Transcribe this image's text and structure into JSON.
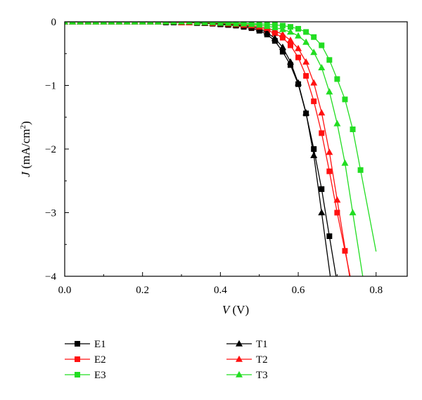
{
  "chart_data": {
    "type": "line",
    "title": "",
    "xlabel": {
      "symbol": "V",
      "unit": " (V)"
    },
    "ylabel": {
      "symbol": "J",
      "unit_pre": " (mA/cm",
      "unit_sup": "2",
      "unit_post": ")"
    },
    "xlim": [
      0,
      0.88
    ],
    "ylim": [
      -4,
      0
    ],
    "xticks": [
      {
        "value": 0.0,
        "label": "0.0"
      },
      {
        "value": 0.2,
        "label": "0.2"
      },
      {
        "value": 0.4,
        "label": "0.4"
      },
      {
        "value": 0.6,
        "label": "0.6"
      },
      {
        "value": 0.8,
        "label": "0.8"
      }
    ],
    "yticks": [
      {
        "value": 0,
        "label": "0"
      },
      {
        "value": -1,
        "label": "−1"
      },
      {
        "value": -2,
        "label": "−2"
      },
      {
        "value": -3,
        "label": "−3"
      },
      {
        "value": -4,
        "label": "−4"
      }
    ],
    "grid": false,
    "legend_position": "bottom",
    "series": [
      {
        "name": "E1",
        "color": "#000000",
        "marker": "square",
        "x": [
          0.0,
          0.02,
          0.04,
          0.06,
          0.08,
          0.1,
          0.12,
          0.14,
          0.16,
          0.18,
          0.2,
          0.22,
          0.24,
          0.26,
          0.28,
          0.3,
          0.32,
          0.34,
          0.36,
          0.38,
          0.4,
          0.42,
          0.44,
          0.46,
          0.48,
          0.5,
          0.52,
          0.54,
          0.56,
          0.58,
          0.6,
          0.62,
          0.64,
          0.66,
          0.68
        ],
        "y": [
          0.0,
          0.0,
          0.0,
          0.0,
          0.0,
          0.0,
          0.0,
          0.0,
          0.0,
          0.0,
          0.0,
          0.0,
          0.0,
          -0.01,
          -0.01,
          -0.01,
          -0.01,
          -0.02,
          -0.02,
          -0.03,
          -0.04,
          -0.05,
          -0.06,
          -0.08,
          -0.1,
          -0.14,
          -0.2,
          -0.3,
          -0.47,
          -0.68,
          -0.98,
          -1.44,
          -2.0,
          -2.63,
          -3.37
        ]
      },
      {
        "name": "E2",
        "color": "#ff1111",
        "marker": "square",
        "x": [
          0.0,
          0.02,
          0.04,
          0.06,
          0.08,
          0.1,
          0.12,
          0.14,
          0.16,
          0.18,
          0.2,
          0.22,
          0.24,
          0.26,
          0.28,
          0.3,
          0.32,
          0.34,
          0.36,
          0.38,
          0.4,
          0.42,
          0.44,
          0.46,
          0.48,
          0.5,
          0.52,
          0.54,
          0.56,
          0.58,
          0.6,
          0.62,
          0.64,
          0.66,
          0.68,
          0.7,
          0.72
        ],
        "y": [
          0.0,
          0.0,
          0.0,
          0.0,
          0.0,
          0.0,
          0.0,
          0.0,
          0.0,
          0.0,
          0.0,
          0.0,
          0.0,
          0.0,
          0.0,
          -0.01,
          -0.01,
          -0.01,
          -0.02,
          -0.02,
          -0.03,
          -0.04,
          -0.05,
          -0.06,
          -0.08,
          -0.1,
          -0.13,
          -0.18,
          -0.25,
          -0.37,
          -0.56,
          -0.85,
          -1.25,
          -1.75,
          -2.35,
          -3.0,
          -3.6
        ]
      },
      {
        "name": "E3",
        "color": "#22dd22",
        "marker": "square",
        "x": [
          0.0,
          0.02,
          0.04,
          0.06,
          0.08,
          0.1,
          0.12,
          0.14,
          0.16,
          0.18,
          0.2,
          0.22,
          0.24,
          0.26,
          0.28,
          0.3,
          0.32,
          0.34,
          0.36,
          0.38,
          0.4,
          0.42,
          0.44,
          0.46,
          0.48,
          0.5,
          0.52,
          0.54,
          0.56,
          0.58,
          0.6,
          0.62,
          0.64,
          0.66,
          0.68,
          0.7,
          0.72,
          0.74,
          0.76
        ],
        "y": [
          0.0,
          0.0,
          0.0,
          0.0,
          0.0,
          0.0,
          0.0,
          0.0,
          0.0,
          0.0,
          0.0,
          0.0,
          0.0,
          0.0,
          0.0,
          0.0,
          0.0,
          0.0,
          -0.01,
          -0.01,
          -0.01,
          -0.01,
          -0.02,
          -0.02,
          -0.03,
          -0.03,
          -0.04,
          -0.05,
          -0.06,
          -0.08,
          -0.11,
          -0.16,
          -0.24,
          -0.37,
          -0.6,
          -0.9,
          -1.22,
          -1.69,
          -2.33
        ]
      },
      {
        "name": "T1",
        "color": "#000000",
        "marker": "triangle",
        "x": [
          0.0,
          0.02,
          0.04,
          0.06,
          0.08,
          0.1,
          0.12,
          0.14,
          0.16,
          0.18,
          0.2,
          0.22,
          0.24,
          0.26,
          0.28,
          0.3,
          0.32,
          0.34,
          0.36,
          0.38,
          0.4,
          0.42,
          0.44,
          0.46,
          0.48,
          0.5,
          0.52,
          0.54,
          0.56,
          0.58,
          0.6,
          0.62,
          0.64,
          0.66
        ],
        "y": [
          0.0,
          0.0,
          0.0,
          0.0,
          0.0,
          0.0,
          0.0,
          0.0,
          0.0,
          0.0,
          0.0,
          0.0,
          0.0,
          0.0,
          0.0,
          -0.01,
          -0.01,
          -0.01,
          -0.02,
          -0.02,
          -0.03,
          -0.04,
          -0.05,
          -0.06,
          -0.08,
          -0.11,
          -0.17,
          -0.26,
          -0.4,
          -0.63,
          -0.96,
          -1.43,
          -2.1,
          -3.0
        ]
      },
      {
        "name": "T2",
        "color": "#ff1111",
        "marker": "triangle",
        "x": [
          0.0,
          0.02,
          0.04,
          0.06,
          0.08,
          0.1,
          0.12,
          0.14,
          0.16,
          0.18,
          0.2,
          0.22,
          0.24,
          0.26,
          0.28,
          0.3,
          0.32,
          0.34,
          0.36,
          0.38,
          0.4,
          0.42,
          0.44,
          0.46,
          0.48,
          0.5,
          0.52,
          0.54,
          0.56,
          0.58,
          0.6,
          0.62,
          0.64,
          0.66,
          0.68,
          0.7
        ],
        "y": [
          0.0,
          0.0,
          0.0,
          0.0,
          0.0,
          0.0,
          0.0,
          0.0,
          0.0,
          0.0,
          0.0,
          0.0,
          0.0,
          0.0,
          0.0,
          -0.01,
          -0.01,
          -0.01,
          -0.01,
          -0.02,
          -0.02,
          -0.03,
          -0.04,
          -0.05,
          -0.06,
          -0.08,
          -0.1,
          -0.14,
          -0.2,
          -0.29,
          -0.42,
          -0.63,
          -0.96,
          -1.43,
          -2.05,
          -2.8
        ]
      },
      {
        "name": "T3",
        "color": "#22dd22",
        "marker": "triangle",
        "x": [
          0.0,
          0.02,
          0.04,
          0.06,
          0.08,
          0.1,
          0.12,
          0.14,
          0.16,
          0.18,
          0.2,
          0.22,
          0.24,
          0.26,
          0.28,
          0.3,
          0.32,
          0.34,
          0.36,
          0.38,
          0.4,
          0.42,
          0.44,
          0.46,
          0.48,
          0.5,
          0.52,
          0.54,
          0.56,
          0.58,
          0.6,
          0.62,
          0.64,
          0.66,
          0.68,
          0.7,
          0.72,
          0.74
        ],
        "y": [
          0.0,
          0.0,
          0.0,
          0.0,
          0.0,
          0.0,
          0.0,
          0.0,
          0.0,
          0.0,
          0.0,
          0.0,
          0.0,
          0.0,
          0.0,
          0.0,
          0.0,
          -0.01,
          -0.01,
          -0.01,
          -0.02,
          -0.02,
          -0.03,
          -0.03,
          -0.04,
          -0.05,
          -0.07,
          -0.09,
          -0.12,
          -0.16,
          -0.22,
          -0.32,
          -0.48,
          -0.72,
          -1.1,
          -1.6,
          -2.22,
          -3.0
        ]
      }
    ]
  }
}
